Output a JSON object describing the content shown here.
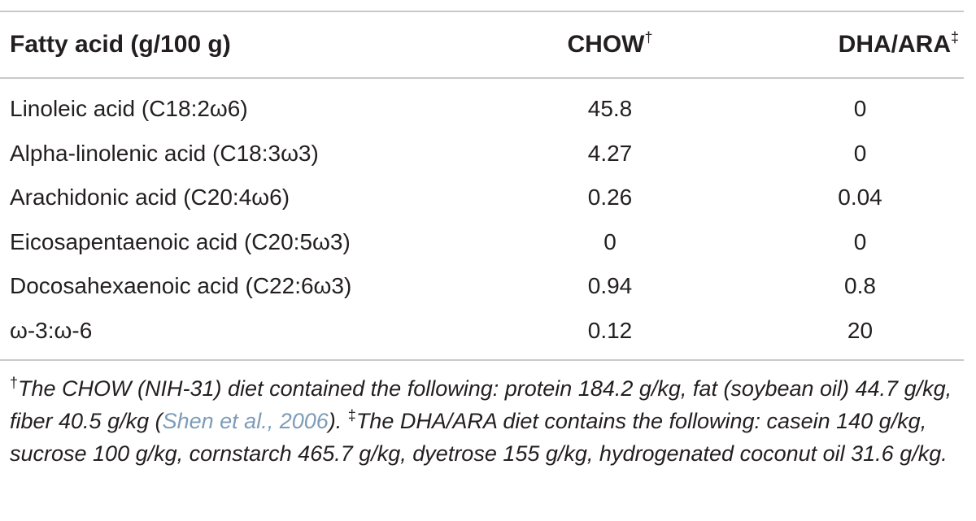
{
  "table": {
    "headers": {
      "col1": "Fatty acid (g/100 g)",
      "col2": "CHOW",
      "col2_mark": "†",
      "col3": "DHA/ARA",
      "col3_mark": "‡"
    },
    "rows": [
      {
        "name": "Linoleic acid (C18:2ω6)",
        "chow": "45.8",
        "dha_ara": "0"
      },
      {
        "name": "Alpha-linolenic acid (C18:3ω3)",
        "chow": "4.27",
        "dha_ara": "0"
      },
      {
        "name": "Arachidonic acid (C20:4ω6)",
        "chow": "0.26",
        "dha_ara": "0.04"
      },
      {
        "name": "Eicosapentaenoic acid (C20:5ω3)",
        "chow": "0",
        "dha_ara": "0"
      },
      {
        "name": "Docosahexaenoic acid (C22:6ω3)",
        "chow": "0.94",
        "dha_ara": "0.8"
      },
      {
        "name": "ω-3:ω-6",
        "chow": "0.12",
        "dha_ara": "20"
      }
    ]
  },
  "footnote": {
    "mark1": "†",
    "text1": "The CHOW (NIH-31) diet contained the following: protein 184.2 g/kg, fat (soybean oil) 44.7 g/kg, fiber 40.5 g/kg (",
    "citation": "Shen et al., 2006",
    "text1_end": ").",
    "mark2": "‡",
    "text2": "The DHA/ARA diet contains the following: casein 140 g/kg, sucrose 100 g/kg, cornstarch 465.7 g/kg, dyetrose 155 g/kg, hydrogenated coconut oil 31.6 g/kg."
  }
}
